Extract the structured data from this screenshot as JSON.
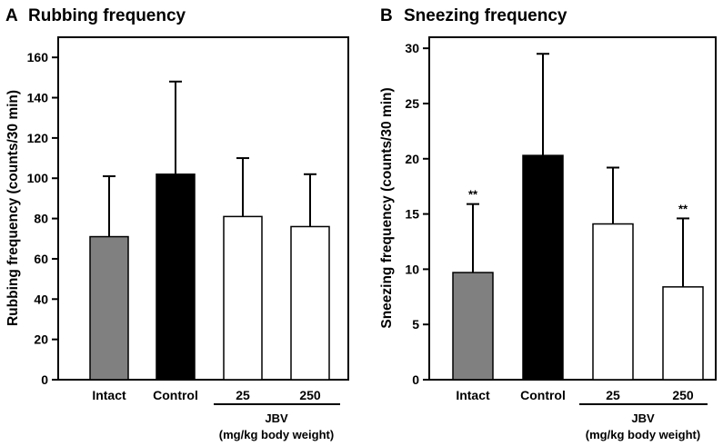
{
  "chart_data": [
    {
      "type": "bar",
      "panel_letter": "A",
      "title": "Rubbing frequency",
      "ylabel": "Rubbing frequency (counts/30 min)",
      "xlabel": "",
      "categories": [
        "Intact",
        "Control",
        "25",
        "250"
      ],
      "values": [
        71,
        102,
        81,
        76
      ],
      "errors": [
        30,
        46,
        29,
        26
      ],
      "bar_fills": [
        "gray",
        "black",
        "white",
        "white"
      ],
      "significance": [
        "",
        "",
        "",
        ""
      ],
      "ylim": [
        0,
        170
      ],
      "yticks": [
        0,
        20,
        40,
        60,
        80,
        100,
        120,
        140,
        160
      ],
      "group_label": "JBV",
      "group_sublabel": "(mg/kg body weight)",
      "grid": false
    },
    {
      "type": "bar",
      "panel_letter": "B",
      "title": "Sneezing frequency",
      "ylabel": "Sneezing frequency (counts/30 min)",
      "xlabel": "",
      "categories": [
        "Intact",
        "Control",
        "25",
        "250"
      ],
      "values": [
        9.7,
        20.3,
        14.1,
        8.4
      ],
      "errors": [
        6.2,
        9.2,
        5.1,
        6.2
      ],
      "bar_fills": [
        "gray",
        "black",
        "white",
        "white"
      ],
      "significance": [
        "**",
        "",
        "",
        "**"
      ],
      "ylim": [
        0,
        31
      ],
      "yticks": [
        0,
        5,
        10,
        15,
        20,
        25,
        30
      ],
      "group_label": "JBV",
      "group_sublabel": "(mg/kg body weight)",
      "grid": false
    }
  ],
  "colors": {
    "gray": "#808080",
    "black": "#000000",
    "white": "#ffffff"
  }
}
